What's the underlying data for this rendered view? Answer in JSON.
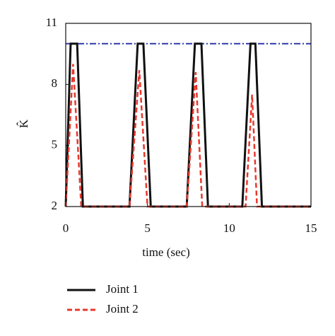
{
  "chart_data": {
    "type": "line",
    "xlabel": "time (sec)",
    "ylabel": "K̂",
    "xlim": [
      0,
      15
    ],
    "xticks": [
      0,
      5,
      10,
      15
    ],
    "ylim": [
      2,
      11
    ],
    "yticks": [
      2,
      5,
      8,
      11
    ],
    "reference_line": {
      "value": 10,
      "color": "#2b3aa8"
    },
    "series": [
      {
        "name": "Joint 1",
        "color": "#111111",
        "dash": "solid",
        "x": [
          0,
          0.3,
          0.7,
          1.05,
          3.9,
          4.4,
          4.75,
          5.2,
          7.4,
          7.9,
          8.3,
          8.7,
          10.8,
          11.3,
          11.6,
          12.0,
          15
        ],
        "values": [
          2,
          10,
          10,
          2,
          2,
          10,
          10,
          2,
          2,
          10,
          10,
          2,
          2,
          10,
          10,
          2,
          2
        ]
      },
      {
        "name": "Joint 2",
        "color": "#e8372c",
        "dash": "dashed",
        "x": [
          0,
          0.45,
          0.95,
          3.9,
          4.5,
          5.0,
          7.4,
          7.95,
          8.35,
          11.0,
          11.4,
          11.7,
          15
        ],
        "values": [
          2,
          9,
          2,
          2,
          8.7,
          2,
          2,
          8.6,
          2,
          2,
          7.5,
          2,
          2
        ]
      }
    ]
  }
}
